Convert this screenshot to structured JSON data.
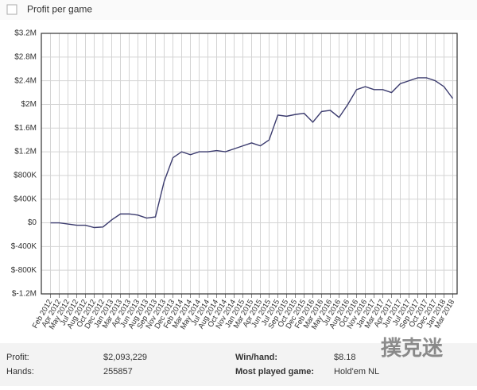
{
  "header": {
    "checkbox_label": "Profit per game"
  },
  "chart_data": {
    "type": "line",
    "categories": [
      "Feb 2012",
      "Apr 2012",
      "May 2012",
      "Jul 2012",
      "Aug 2012",
      "Oct 2012",
      "Dec 2012",
      "Jan 2013",
      "Mar 2013",
      "Apr 2013",
      "Jun 2013",
      "Aug 2013",
      "Sep 2013",
      "Nov 2013",
      "Dec 2013",
      "Feb 2014",
      "Mar 2014",
      "May 2014",
      "Jul 2014",
      "Aug 2014",
      "Oct 2014",
      "Nov 2014",
      "Jan 2015",
      "Mar 2015",
      "Apr 2015",
      "Jun 2015",
      "Jul 2015",
      "Sep 2015",
      "Oct 2015",
      "Dec 2015",
      "Feb 2016",
      "Mar 2016",
      "May 2016",
      "Jul 2016",
      "Aug 2016",
      "Oct 2016",
      "Nov 2016",
      "Jan 2017",
      "Mar 2017",
      "Apr 2017",
      "Jun 2017",
      "Jul 2017",
      "Sep 2017",
      "Oct 2017",
      "Dec 2017",
      "Jan 2018",
      "Mar 2018"
    ],
    "series": [
      {
        "color": "#3b3b6e",
        "values": [
          0,
          0,
          -20000,
          -40000,
          -40000,
          -80000,
          -70000,
          50000,
          150000,
          150000,
          130000,
          80000,
          100000,
          700000,
          1100000,
          1200000,
          1150000,
          1200000,
          1200000,
          1220000,
          1200000,
          1250000,
          1300000,
          1350000,
          1300000,
          1400000,
          1820000,
          1800000,
          1830000,
          1850000,
          1700000,
          1880000,
          1900000,
          1780000,
          2000000,
          2250000,
          2300000,
          2250000,
          2250000,
          2200000,
          2350000,
          2400000,
          2450000,
          2450000,
          2400000,
          2300000,
          2100000
        ]
      }
    ],
    "ylim": [
      -1200000,
      3200000
    ],
    "yticks": [
      {
        "value": -1200000,
        "label": "$-1.2M"
      },
      {
        "value": -800000,
        "label": "$-800K"
      },
      {
        "value": -400000,
        "label": "$-400K"
      },
      {
        "value": 0,
        "label": "$0"
      },
      {
        "value": 400000,
        "label": "$400K"
      },
      {
        "value": 800000,
        "label": "$800K"
      },
      {
        "value": 1200000,
        "label": "$1.2M"
      },
      {
        "value": 1600000,
        "label": "$1.6M"
      },
      {
        "value": 2000000,
        "label": "$2M"
      },
      {
        "value": 2400000,
        "label": "$2.4M"
      },
      {
        "value": 2800000,
        "label": "$2.8M"
      },
      {
        "value": 3200000,
        "label": "$3.2M"
      }
    ],
    "grid": true
  },
  "stats": [
    {
      "label": "Profit:",
      "value": "$2,093,229",
      "label2": "Win/hand:",
      "value2": "$8.18"
    },
    {
      "label": "Hands:",
      "value": "255857",
      "label2": "Most played game:",
      "value2": "Hold'em NL"
    }
  ],
  "watermark": "撲克迷"
}
